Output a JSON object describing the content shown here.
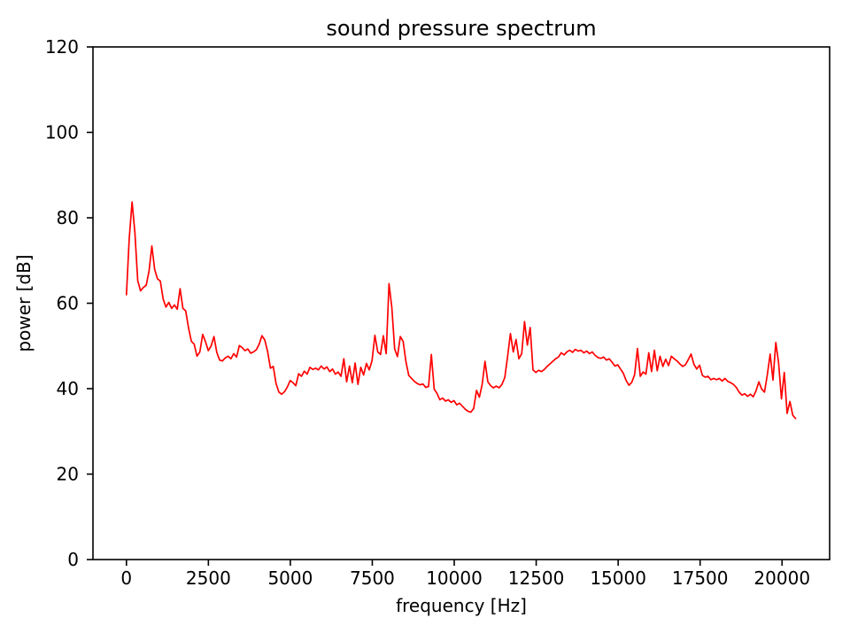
{
  "figure": {
    "background_color": "#ffffff",
    "spine_color": "#000000",
    "tick_color": "#000000",
    "text_color": "#000000"
  },
  "chart_data": {
    "type": "line",
    "title": "sound pressure spectrum",
    "xlabel": "frequency [Hz]",
    "ylabel": "power [dB]",
    "xlim": [
      -1021,
      21452
    ],
    "ylim": [
      0,
      120
    ],
    "xticks": [
      0,
      2500,
      5000,
      7500,
      10000,
      12500,
      15000,
      17500,
      20000
    ],
    "yticks": [
      0,
      20,
      40,
      60,
      80,
      100,
      120
    ],
    "grid": false,
    "legend": "none",
    "line_color": "#ff0000",
    "series_name": "sound pressure spectrum",
    "x_start": 0,
    "x_step": 86.13,
    "values": [
      62.0,
      75.3,
      83.7,
      76.5,
      65.3,
      62.9,
      63.7,
      64.2,
      67.5,
      73.4,
      67.9,
      65.7,
      65.2,
      61.0,
      59.1,
      60.2,
      58.8,
      59.6,
      58.6,
      63.4,
      58.8,
      58.2,
      54.2,
      51.1,
      50.4,
      47.6,
      48.6,
      52.7,
      51.0,
      48.9,
      50.0,
      52.2,
      48.5,
      46.7,
      46.5,
      47.2,
      47.6,
      47.0,
      48.2,
      47.4,
      50.1,
      49.6,
      48.9,
      49.3,
      48.3,
      48.6,
      49.1,
      50.4,
      52.4,
      51.4,
      48.7,
      44.8,
      45.2,
      41.2,
      39.2,
      38.7,
      39.3,
      40.4,
      41.9,
      41.4,
      40.7,
      43.5,
      42.9,
      44.1,
      43.4,
      45.0,
      44.5,
      44.8,
      44.4,
      45.3,
      44.6,
      45.1,
      44.0,
      44.6,
      43.4,
      43.9,
      42.9,
      47.0,
      41.6,
      45.3,
      41.4,
      46.0,
      41.0,
      45.0,
      43.2,
      45.9,
      44.4,
      46.6,
      52.5,
      48.6,
      48.0,
      52.4,
      48.2,
      64.6,
      59.0,
      49.3,
      47.5,
      52.2,
      51.1,
      46.3,
      43.1,
      42.4,
      41.7,
      41.2,
      40.9,
      41.1,
      40.3,
      40.5,
      48.0,
      39.9,
      38.9,
      37.4,
      37.8,
      37.1,
      37.4,
      36.8,
      37.2,
      36.2,
      36.6,
      35.9,
      35.2,
      34.7,
      34.5,
      35.4,
      39.6,
      38.0,
      41.0,
      46.4,
      41.6,
      40.7,
      40.2,
      40.6,
      40.2,
      41.0,
      42.6,
      47.5,
      52.9,
      48.6,
      51.5,
      47.0,
      48.2,
      55.7,
      50.2,
      54.3,
      44.4,
      43.8,
      44.3,
      44.0,
      44.5,
      45.2,
      45.8,
      46.4,
      47.0,
      47.4,
      48.4,
      47.9,
      48.6,
      49.0,
      48.5,
      49.2,
      48.8,
      49.0,
      48.4,
      48.8,
      48.2,
      48.6,
      47.8,
      47.3,
      47.1,
      47.4,
      46.7,
      47.0,
      46.2,
      45.3,
      45.6,
      44.6,
      43.6,
      41.9,
      40.8,
      41.5,
      43.3,
      49.4,
      42.9,
      43.9,
      43.4,
      48.4,
      44.0,
      49.0,
      44.2,
      47.6,
      45.2,
      46.9,
      45.4,
      47.6,
      47.0,
      46.5,
      45.8,
      45.2,
      45.6,
      46.8,
      48.1,
      45.7,
      44.6,
      45.5,
      43.1,
      42.7,
      42.9,
      42.1,
      42.4,
      42.1,
      42.4,
      41.8,
      42.4,
      41.7,
      41.4,
      41.0,
      40.3,
      39.2,
      38.5,
      38.8,
      38.2,
      38.7,
      38.1,
      39.5,
      41.6,
      39.9,
      39.2,
      43.3,
      48.1,
      42.0,
      50.8,
      46.0,
      37.6,
      43.8,
      34.2,
      37.0,
      33.8,
      33.0
    ]
  }
}
